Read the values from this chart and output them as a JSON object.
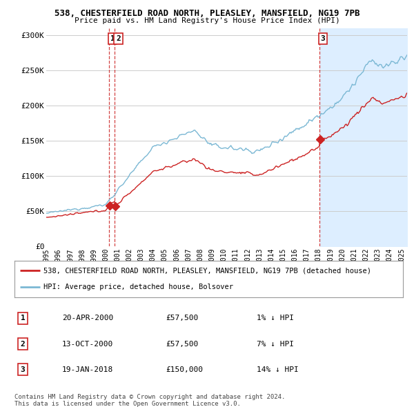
{
  "title": "538, CHESTERFIELD ROAD NORTH, PLEASLEY, MANSFIELD, NG19 7PB",
  "subtitle": "Price paid vs. HM Land Registry's House Price Index (HPI)",
  "hpi_color": "#7bb8d4",
  "price_color": "#cc2222",
  "dashed_color": "#cc2222",
  "shade_color": "#ddeeff",
  "bg_color": "#ffffff",
  "grid_color": "#cccccc",
  "ylim": [
    0,
    310000
  ],
  "yticks": [
    0,
    50000,
    100000,
    150000,
    200000,
    250000,
    300000
  ],
  "ytick_labels": [
    "£0",
    "£50K",
    "£100K",
    "£150K",
    "£200K",
    "£250K",
    "£300K"
  ],
  "transactions": [
    {
      "date_num": 2000.3,
      "price": 57500,
      "label": "1"
    },
    {
      "date_num": 2000.78,
      "price": 57500,
      "label": "2"
    },
    {
      "date_num": 2018.05,
      "price": 150000,
      "label": "3"
    }
  ],
  "legend_line1": "538, CHESTERFIELD ROAD NORTH, PLEASLEY, MANSFIELD, NG19 7PB (detached house)",
  "legend_line2": "HPI: Average price, detached house, Bolsover",
  "table_rows": [
    {
      "num": "1",
      "date": "20-APR-2000",
      "price": "£57,500",
      "hpi": "1% ↓ HPI"
    },
    {
      "num": "2",
      "date": "13-OCT-2000",
      "price": "£57,500",
      "hpi": "7% ↓ HPI"
    },
    {
      "num": "3",
      "date": "19-JAN-2018",
      "price": "£150,000",
      "hpi": "14% ↓ HPI"
    }
  ],
  "footer1": "Contains HM Land Registry data © Crown copyright and database right 2024.",
  "footer2": "This data is licensed under the Open Government Licence v3.0.",
  "xmin": 1995,
  "xmax": 2025.5
}
